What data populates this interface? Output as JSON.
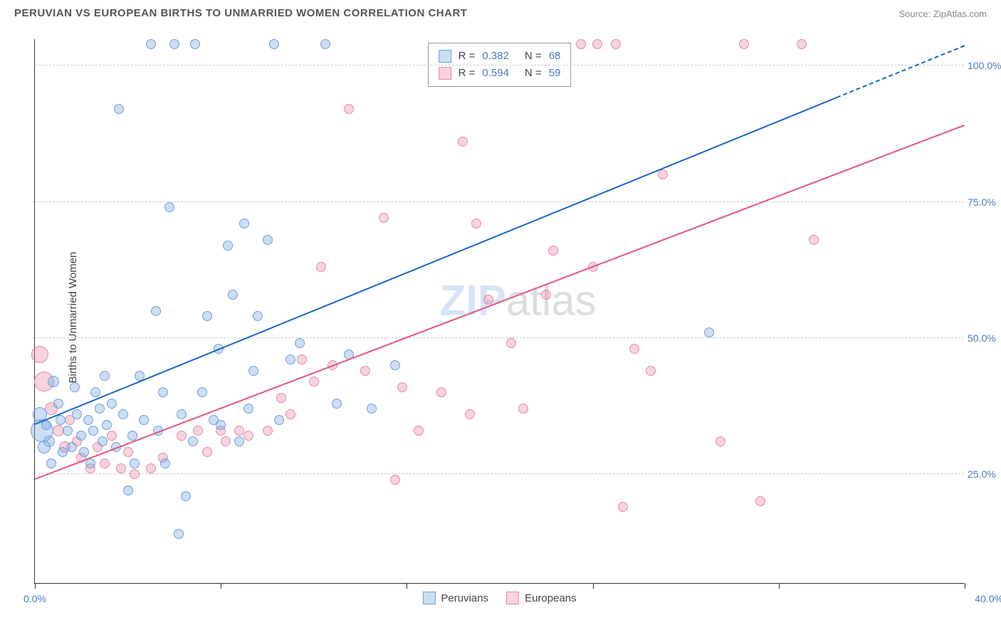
{
  "header": {
    "title": "PERUVIAN VS EUROPEAN BIRTHS TO UNMARRIED WOMEN CORRELATION CHART",
    "source": "Source: ZipAtlas.com"
  },
  "chart": {
    "type": "scatter",
    "ylabel": "Births to Unmarried Women",
    "xlim": [
      0,
      40
    ],
    "ylim": [
      5,
      105
    ],
    "xticks": [
      0,
      8,
      16,
      24,
      32,
      40
    ],
    "xtick_labels": [
      "0.0%",
      "",
      "",
      "",
      "",
      "40.0%"
    ],
    "yticks": [
      25,
      50,
      75,
      100
    ],
    "ytick_labels": [
      "25.0%",
      "50.0%",
      "75.0%",
      "100.0%"
    ],
    "grid_color": "#cccccc",
    "axis_color": "#333333",
    "background": "#ffffff",
    "series": [
      {
        "name": "Peruvians",
        "fill": "rgba(110,160,220,0.35)",
        "stroke": "#6ea0dc",
        "line_color": "#1a63c7",
        "R": 0.382,
        "N": 68,
        "fit": {
          "x0": 0,
          "y0": 34,
          "x1": 34.5,
          "y1": 94
        },
        "fit_dash": {
          "x0": 34.5,
          "y0": 94,
          "x1": 40,
          "y1": 103.5
        },
        "points": [
          {
            "x": 0.3,
            "y": 33,
            "r": 16
          },
          {
            "x": 0.2,
            "y": 36,
            "r": 10
          },
          {
            "x": 0.4,
            "y": 30,
            "r": 9
          },
          {
            "x": 0.6,
            "y": 31,
            "r": 8
          },
          {
            "x": 0.8,
            "y": 42,
            "r": 8
          },
          {
            "x": 1.0,
            "y": 38,
            "r": 7
          },
          {
            "x": 1.1,
            "y": 35,
            "r": 7
          },
          {
            "x": 1.4,
            "y": 33,
            "r": 7
          },
          {
            "x": 1.6,
            "y": 30,
            "r": 7
          },
          {
            "x": 1.7,
            "y": 41,
            "r": 7
          },
          {
            "x": 1.8,
            "y": 36,
            "r": 7
          },
          {
            "x": 2.0,
            "y": 32,
            "r": 7
          },
          {
            "x": 2.1,
            "y": 29,
            "r": 7
          },
          {
            "x": 2.3,
            "y": 35,
            "r": 7
          },
          {
            "x": 2.5,
            "y": 33,
            "r": 7
          },
          {
            "x": 2.6,
            "y": 40,
            "r": 7
          },
          {
            "x": 2.8,
            "y": 37,
            "r": 7
          },
          {
            "x": 2.9,
            "y": 31,
            "r": 7
          },
          {
            "x": 3.0,
            "y": 43,
            "r": 7
          },
          {
            "x": 3.1,
            "y": 34,
            "r": 7
          },
          {
            "x": 3.3,
            "y": 38,
            "r": 7
          },
          {
            "x": 3.6,
            "y": 92,
            "r": 7
          },
          {
            "x": 3.8,
            "y": 36,
            "r": 7
          },
          {
            "x": 4.0,
            "y": 22,
            "r": 7
          },
          {
            "x": 4.2,
            "y": 32,
            "r": 7
          },
          {
            "x": 4.5,
            "y": 43,
            "r": 7
          },
          {
            "x": 4.7,
            "y": 35,
            "r": 7
          },
          {
            "x": 5.0,
            "y": 104,
            "r": 7
          },
          {
            "x": 5.2,
            "y": 55,
            "r": 7
          },
          {
            "x": 5.3,
            "y": 33,
            "r": 7
          },
          {
            "x": 5.5,
            "y": 40,
            "r": 7
          },
          {
            "x": 5.8,
            "y": 74,
            "r": 7
          },
          {
            "x": 6.0,
            "y": 104,
            "r": 7
          },
          {
            "x": 6.2,
            "y": 14,
            "r": 7
          },
          {
            "x": 6.3,
            "y": 36,
            "r": 7
          },
          {
            "x": 6.5,
            "y": 21,
            "r": 7
          },
          {
            "x": 6.8,
            "y": 31,
            "r": 7
          },
          {
            "x": 6.9,
            "y": 104,
            "r": 7
          },
          {
            "x": 7.2,
            "y": 40,
            "r": 7
          },
          {
            "x": 7.4,
            "y": 54,
            "r": 7
          },
          {
            "x": 7.7,
            "y": 35,
            "r": 7
          },
          {
            "x": 8.0,
            "y": 34,
            "r": 7
          },
          {
            "x": 8.3,
            "y": 67,
            "r": 7
          },
          {
            "x": 8.5,
            "y": 58,
            "r": 7
          },
          {
            "x": 8.8,
            "y": 31,
            "r": 7
          },
          {
            "x": 9.0,
            "y": 71,
            "r": 7
          },
          {
            "x": 9.2,
            "y": 37,
            "r": 7
          },
          {
            "x": 9.6,
            "y": 54,
            "r": 7
          },
          {
            "x": 10.0,
            "y": 68,
            "r": 7
          },
          {
            "x": 10.3,
            "y": 104,
            "r": 7
          },
          {
            "x": 10.5,
            "y": 35,
            "r": 7
          },
          {
            "x": 11.0,
            "y": 46,
            "r": 7
          },
          {
            "x": 11.4,
            "y": 49,
            "r": 7
          },
          {
            "x": 12.5,
            "y": 104,
            "r": 7
          },
          {
            "x": 13.0,
            "y": 38,
            "r": 7
          },
          {
            "x": 13.5,
            "y": 47,
            "r": 7
          },
          {
            "x": 14.5,
            "y": 37,
            "r": 7
          },
          {
            "x": 15.5,
            "y": 45,
            "r": 7
          },
          {
            "x": 29.0,
            "y": 51,
            "r": 7
          },
          {
            "x": 4.3,
            "y": 27,
            "r": 7
          },
          {
            "x": 5.6,
            "y": 27,
            "r": 7
          },
          {
            "x": 3.5,
            "y": 30,
            "r": 7
          },
          {
            "x": 1.2,
            "y": 29,
            "r": 7
          },
          {
            "x": 2.4,
            "y": 27,
            "r": 7
          },
          {
            "x": 0.7,
            "y": 27,
            "r": 7
          },
          {
            "x": 7.9,
            "y": 48,
            "r": 7
          },
          {
            "x": 9.4,
            "y": 44,
            "r": 7
          },
          {
            "x": 0.5,
            "y": 34,
            "r": 7
          }
        ]
      },
      {
        "name": "Europeans",
        "fill": "rgba(230,130,160,0.35)",
        "stroke": "#e68aa8",
        "line_color": "#e0567f",
        "R": 0.594,
        "N": 59,
        "fit": {
          "x0": 0,
          "y0": 24,
          "x1": 40,
          "y1": 89
        },
        "points": [
          {
            "x": 0.2,
            "y": 47,
            "r": 12
          },
          {
            "x": 0.4,
            "y": 42,
            "r": 14
          },
          {
            "x": 0.7,
            "y": 37,
            "r": 9
          },
          {
            "x": 1.0,
            "y": 33,
            "r": 8
          },
          {
            "x": 1.3,
            "y": 30,
            "r": 8
          },
          {
            "x": 1.5,
            "y": 35,
            "r": 7
          },
          {
            "x": 1.8,
            "y": 31,
            "r": 7
          },
          {
            "x": 2.0,
            "y": 28,
            "r": 7
          },
          {
            "x": 2.4,
            "y": 26,
            "r": 7
          },
          {
            "x": 2.7,
            "y": 30,
            "r": 7
          },
          {
            "x": 3.0,
            "y": 27,
            "r": 7
          },
          {
            "x": 3.3,
            "y": 32,
            "r": 7
          },
          {
            "x": 3.7,
            "y": 26,
            "r": 7
          },
          {
            "x": 4.0,
            "y": 29,
            "r": 7
          },
          {
            "x": 4.3,
            "y": 25,
            "r": 7
          },
          {
            "x": 5.0,
            "y": 26,
            "r": 7
          },
          {
            "x": 5.5,
            "y": 28,
            "r": 7
          },
          {
            "x": 6.3,
            "y": 32,
            "r": 7
          },
          {
            "x": 7.0,
            "y": 33,
            "r": 7
          },
          {
            "x": 7.4,
            "y": 29,
            "r": 7
          },
          {
            "x": 8.0,
            "y": 33,
            "r": 7
          },
          {
            "x": 8.2,
            "y": 31,
            "r": 7
          },
          {
            "x": 8.8,
            "y": 33,
            "r": 7
          },
          {
            "x": 9.2,
            "y": 32,
            "r": 7
          },
          {
            "x": 10.0,
            "y": 33,
            "r": 7
          },
          {
            "x": 10.6,
            "y": 39,
            "r": 7
          },
          {
            "x": 11.0,
            "y": 36,
            "r": 7
          },
          {
            "x": 11.5,
            "y": 46,
            "r": 7
          },
          {
            "x": 12.0,
            "y": 42,
            "r": 7
          },
          {
            "x": 12.3,
            "y": 63,
            "r": 7
          },
          {
            "x": 12.8,
            "y": 45,
            "r": 7
          },
          {
            "x": 13.5,
            "y": 92,
            "r": 7
          },
          {
            "x": 14.2,
            "y": 44,
            "r": 7
          },
          {
            "x": 15.0,
            "y": 72,
            "r": 7
          },
          {
            "x": 15.5,
            "y": 24,
            "r": 7
          },
          {
            "x": 15.8,
            "y": 41,
            "r": 7
          },
          {
            "x": 16.5,
            "y": 33,
            "r": 7
          },
          {
            "x": 17.5,
            "y": 40,
            "r": 7
          },
          {
            "x": 18.4,
            "y": 86,
            "r": 7
          },
          {
            "x": 18.7,
            "y": 36,
            "r": 7
          },
          {
            "x": 19.0,
            "y": 71,
            "r": 7
          },
          {
            "x": 19.5,
            "y": 57,
            "r": 7
          },
          {
            "x": 20.5,
            "y": 49,
            "r": 7
          },
          {
            "x": 21.0,
            "y": 37,
            "r": 7
          },
          {
            "x": 22.0,
            "y": 58,
            "r": 7
          },
          {
            "x": 22.3,
            "y": 66,
            "r": 7
          },
          {
            "x": 23.5,
            "y": 104,
            "r": 7
          },
          {
            "x": 24.0,
            "y": 63,
            "r": 7
          },
          {
            "x": 24.2,
            "y": 104,
            "r": 7
          },
          {
            "x": 25.0,
            "y": 104,
            "r": 7
          },
          {
            "x": 25.3,
            "y": 19,
            "r": 7
          },
          {
            "x": 25.8,
            "y": 48,
            "r": 7
          },
          {
            "x": 26.5,
            "y": 44,
            "r": 7
          },
          {
            "x": 27.0,
            "y": 80,
            "r": 7
          },
          {
            "x": 29.5,
            "y": 31,
            "r": 7
          },
          {
            "x": 30.5,
            "y": 104,
            "r": 7
          },
          {
            "x": 31.2,
            "y": 20,
            "r": 7
          },
          {
            "x": 33.0,
            "y": 104,
            "r": 7
          },
          {
            "x": 33.5,
            "y": 68,
            "r": 7
          }
        ]
      }
    ],
    "watermark": {
      "prefix": "ZIP",
      "suffix": "atlas",
      "prefix_color": "#6ea0dc",
      "suffix_color": "#888888"
    },
    "legend_bottom": [
      {
        "label": "Peruvians",
        "fill": "rgba(110,160,220,0.35)",
        "stroke": "#6ea0dc"
      },
      {
        "label": "Europeans",
        "fill": "rgba(230,130,160,0.35)",
        "stroke": "#e68aa8"
      }
    ],
    "rbox": [
      {
        "swatch_fill": "rgba(110,160,220,0.35)",
        "swatch_stroke": "#6ea0dc",
        "R": "0.382",
        "N": "68"
      },
      {
        "swatch_fill": "rgba(230,130,160,0.35)",
        "swatch_stroke": "#e68aa8",
        "R": "0.594",
        "N": "59"
      }
    ]
  }
}
